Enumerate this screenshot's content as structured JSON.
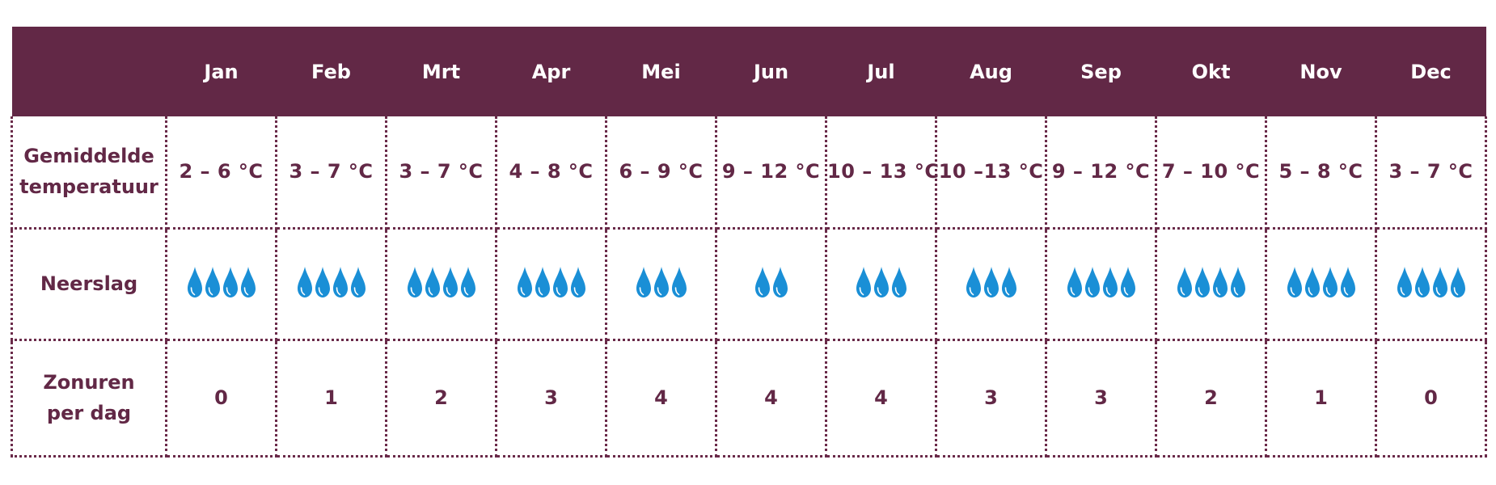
{
  "colors": {
    "header_bg": "#622846",
    "header_text": "#ffffff",
    "body_text": "#622846",
    "grid_border": "#6a2a49",
    "drop": "#1a8fd6"
  },
  "table": {
    "corner_label": "",
    "months": [
      "Jan",
      "Feb",
      "Mrt",
      "Apr",
      "Mei",
      "Jun",
      "Jul",
      "Aug",
      "Sep",
      "Okt",
      "Nov",
      "Dec"
    ],
    "rows": {
      "temperature": {
        "label_line1": "Gemiddelde",
        "label_line2": "temperatuur",
        "values": [
          "2 – 6 °C",
          "3 – 7 °C",
          "3 – 7 °C",
          "4 – 8 °C",
          "6 – 9 °C",
          "9 – 12 °C",
          "10 – 13 °C",
          "10 –13 °C",
          "9 – 12 °C",
          "7 – 10 °C",
          "5 – 8 °C",
          "3 – 7 °C"
        ]
      },
      "precipitation": {
        "label": "Neerslag",
        "icon": "raindrop-icon",
        "drop_counts": [
          4,
          4,
          4,
          4,
          3,
          2,
          3,
          3,
          4,
          4,
          4,
          4
        ]
      },
      "sunshine": {
        "label_line1": "Zonuren",
        "label_line2": "per dag",
        "values": [
          "0",
          "1",
          "2",
          "3",
          "4",
          "4",
          "4",
          "3",
          "3",
          "2",
          "1",
          "0"
        ]
      }
    }
  }
}
